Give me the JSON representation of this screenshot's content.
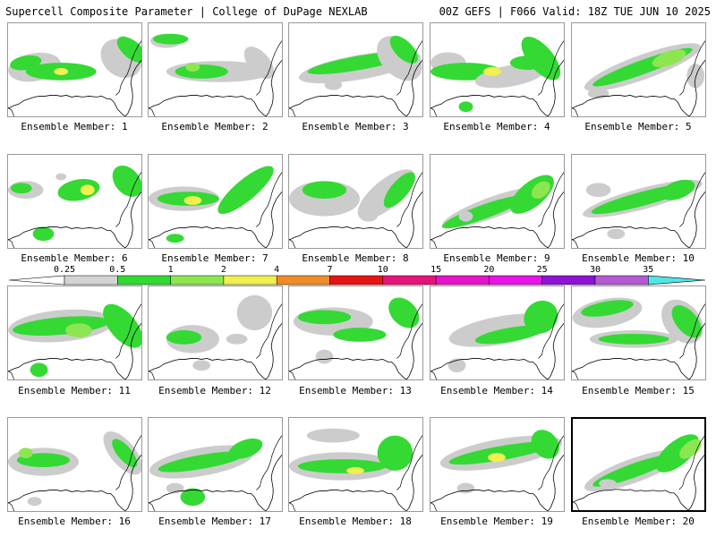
{
  "header": {
    "left_title": "Supercell Composite Parameter | College of DuPage NEXLAB",
    "right_title": "00Z GEFS | F066 Valid: 18Z TUE JUN 10 2025"
  },
  "colorbar": {
    "labels": [
      "0.25",
      "0.5",
      "1",
      "2",
      "4",
      "7",
      "10",
      "15",
      "20",
      "25",
      "30",
      "35"
    ],
    "colors": [
      "#d3d3d3",
      "#32d932",
      "#8ce650",
      "#f0f050",
      "#f08c28",
      "#e61414",
      "#e6147a",
      "#e614c8",
      "#e614e6",
      "#8c14d2",
      "#b45ad2",
      "#50e6e6"
    ]
  },
  "colors": {
    "grey": "#cccccc",
    "green": "#34d934",
    "lightgreen": "#8ce650",
    "yellow": "#f0f050",
    "coast": "#000000"
  },
  "panels": [
    {
      "label": "Ensemble Member: 1"
    },
    {
      "label": "Ensemble Member: 2"
    },
    {
      "label": "Ensemble Member: 3"
    },
    {
      "label": "Ensemble Member: 4"
    },
    {
      "label": "Ensemble Member: 5"
    },
    {
      "label": "Ensemble Member: 6"
    },
    {
      "label": "Ensemble Member: 7"
    },
    {
      "label": "Ensemble Member: 8"
    },
    {
      "label": "Ensemble Member: 9"
    },
    {
      "label": "Ensemble Member: 10"
    },
    {
      "label": "Ensemble Member: 11"
    },
    {
      "label": "Ensemble Member: 12"
    },
    {
      "label": "Ensemble Member: 13"
    },
    {
      "label": "Ensemble Member: 14"
    },
    {
      "label": "Ensemble Member: 15"
    },
    {
      "label": "Ensemble Member: 16"
    },
    {
      "label": "Ensemble Member: 17"
    },
    {
      "label": "Ensemble Member: 18"
    },
    {
      "label": "Ensemble Member: 19"
    },
    {
      "label": "Ensemble Member: 20",
      "selected": true
    }
  ]
}
